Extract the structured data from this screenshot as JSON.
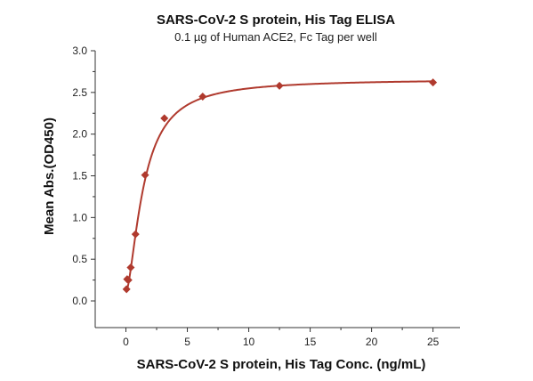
{
  "chart_data": {
    "type": "scatter",
    "title": "SARS-CoV-2 S protein, His Tag ELISA",
    "subtitle": "0.1 µg of Human ACE2, Fc Tag per well",
    "xlabel": "SARS-CoV-2 S protein, His Tag Conc. (ng/mL)",
    "ylabel": "Mean Abs.(OD450)",
    "xlim": [
      -2.5,
      27.2
    ],
    "ylim": [
      -0.32,
      3.0
    ],
    "x_ticks": [
      0,
      5,
      10,
      15,
      20,
      25
    ],
    "x_minor_ticks": [
      2.5,
      7.5,
      12.5,
      17.5,
      22.5
    ],
    "y_ticks": [
      0.0,
      0.5,
      1.0,
      1.5,
      2.0,
      2.5,
      3.0
    ],
    "y_minor_ticks": [
      0.25,
      0.75,
      1.25,
      1.75,
      2.25,
      2.75
    ],
    "grid": false,
    "legend": "none",
    "series": [
      {
        "values_x": [
          0.05,
          0.1,
          0.2,
          0.39,
          0.78,
          1.56,
          3.13,
          6.25,
          12.5,
          25
        ],
        "values_y": [
          0.14,
          0.26,
          0.25,
          0.4,
          0.8,
          1.51,
          2.19,
          2.45,
          2.58,
          2.62
        ],
        "color": "#b03a2e",
        "marker": "diamond",
        "fit": "4PL"
      }
    ],
    "fit_curve": {
      "bottom": 0.1,
      "top": 2.66,
      "ec50": 1.45,
      "hill": 1.6
    }
  }
}
